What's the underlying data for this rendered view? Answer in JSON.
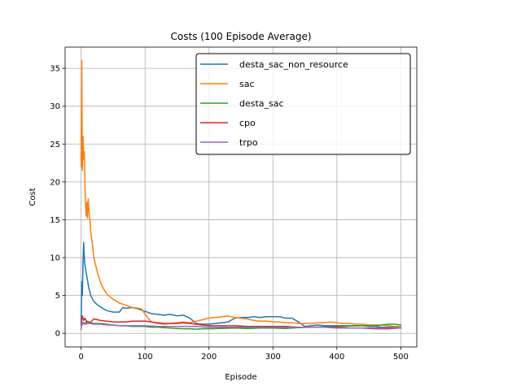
{
  "chart_data": {
    "type": "line",
    "title": "Costs (100 Episode Average)",
    "xlabel": "Episode",
    "ylabel": "Cost",
    "xlim": [
      -25,
      525
    ],
    "ylim": [
      -1.8,
      37.8
    ],
    "xticks": [
      0,
      100,
      200,
      300,
      400,
      500
    ],
    "yticks": [
      0,
      5,
      10,
      15,
      20,
      25,
      30,
      35
    ],
    "grid": true,
    "legend_position": "upper right",
    "series": [
      {
        "name": "desta_sac_non_resource",
        "color": "#1f77b4",
        "x": [
          0,
          1,
          2,
          3,
          4,
          5,
          6,
          7,
          8,
          10,
          12,
          15,
          20,
          25,
          30,
          40,
          50,
          60,
          65,
          70,
          80,
          90,
          100,
          110,
          120,
          130,
          140,
          150,
          160,
          170,
          180,
          190,
          200,
          210,
          220,
          230,
          240,
          250,
          260,
          270,
          280,
          290,
          300,
          310,
          320,
          330,
          340,
          350,
          360,
          370,
          380,
          390,
          400,
          410,
          420,
          430,
          440,
          450,
          460,
          470,
          480,
          490,
          500
        ],
        "y": [
          0.9,
          6.8,
          5.0,
          9.5,
          12.0,
          10.0,
          9.0,
          8.5,
          8.0,
          7.0,
          6.0,
          5.0,
          4.2,
          3.8,
          3.5,
          3.0,
          2.8,
          2.8,
          3.4,
          3.3,
          3.4,
          3.2,
          2.9,
          2.6,
          2.5,
          2.4,
          2.5,
          2.3,
          2.4,
          2.0,
          1.3,
          1.2,
          1.2,
          1.3,
          1.4,
          1.5,
          2.0,
          2.1,
          2.1,
          2.2,
          2.1,
          2.2,
          2.2,
          2.2,
          2.0,
          2.0,
          1.5,
          0.9,
          1.0,
          1.1,
          1.0,
          1.0,
          1.0,
          1.0,
          1.0,
          1.0,
          1.0,
          0.9,
          0.9,
          0.8,
          0.8,
          0.8,
          0.7
        ]
      },
      {
        "name": "sac",
        "color": "#ff7f0e",
        "x": [
          0,
          1,
          2,
          3,
          4,
          5,
          6,
          7,
          8,
          9,
          10,
          11,
          12,
          13,
          14,
          15,
          18,
          20,
          25,
          30,
          35,
          40,
          50,
          60,
          70,
          80,
          90,
          95,
          100,
          110,
          120,
          130,
          140,
          150,
          160,
          170,
          180,
          190,
          200,
          210,
          220,
          230,
          240,
          250,
          260,
          270,
          280,
          290,
          300,
          310,
          320,
          330,
          340,
          350,
          360,
          370,
          380,
          390,
          400,
          410,
          420,
          430,
          440,
          450,
          460,
          470,
          480,
          490,
          500
        ],
        "y": [
          22,
          36,
          21.5,
          26,
          23,
          24,
          20,
          17,
          15.5,
          17.3,
          15.2,
          17.8,
          16.5,
          15.5,
          15.0,
          13.5,
          11.5,
          10.0,
          8.2,
          6.8,
          5.9,
          5.2,
          4.5,
          4.0,
          3.7,
          3.4,
          3.3,
          3.2,
          2.5,
          1.5,
          1.3,
          1.2,
          1.3,
          1.4,
          1.5,
          1.4,
          1.6,
          1.8,
          2.0,
          2.1,
          2.2,
          2.3,
          2.1,
          2.0,
          1.9,
          1.7,
          1.6,
          1.6,
          1.5,
          1.5,
          1.4,
          1.4,
          1.3,
          1.3,
          1.3,
          1.4,
          1.4,
          1.5,
          1.4,
          1.3,
          1.3,
          1.2,
          1.2,
          1.1,
          1.1,
          1.1,
          1.0,
          0.9,
          0.9
        ]
      },
      {
        "name": "desta_sac",
        "color": "#2ca02c",
        "x": [
          0,
          2,
          5,
          10,
          15,
          20,
          30,
          40,
          50,
          60,
          70,
          80,
          90,
          100,
          110,
          120,
          130,
          140,
          150,
          160,
          170,
          180,
          190,
          200,
          220,
          240,
          260,
          280,
          300,
          320,
          340,
          360,
          380,
          400,
          420,
          440,
          460,
          470,
          480,
          490,
          500
        ],
        "y": [
          1.2,
          1.5,
          1.3,
          1.6,
          1.4,
          1.3,
          1.3,
          1.2,
          1.1,
          1.0,
          1.0,
          0.9,
          0.9,
          0.9,
          0.8,
          0.8,
          0.75,
          0.7,
          0.65,
          0.6,
          0.6,
          0.55,
          0.6,
          0.6,
          0.65,
          0.7,
          0.65,
          0.7,
          0.7,
          0.65,
          0.75,
          0.8,
          0.85,
          0.9,
          0.95,
          1.0,
          1.0,
          1.1,
          1.2,
          1.2,
          1.1
        ]
      },
      {
        "name": "cpo",
        "color": "#d62728",
        "x": [
          0,
          2,
          4,
          6,
          10,
          15,
          20,
          30,
          40,
          50,
          60,
          70,
          80,
          90,
          100,
          110,
          120,
          130,
          140,
          150,
          160,
          170,
          180,
          190,
          200,
          220,
          240,
          260,
          280,
          300,
          320,
          340,
          360,
          380,
          400,
          420,
          440,
          460,
          480,
          500
        ],
        "y": [
          1.4,
          2.3,
          1.7,
          2.0,
          1.3,
          1.5,
          1.9,
          1.7,
          1.6,
          1.5,
          1.5,
          1.5,
          1.6,
          1.6,
          1.6,
          1.5,
          1.4,
          1.3,
          1.3,
          1.3,
          1.4,
          1.3,
          1.2,
          1.1,
          1.0,
          1.0,
          1.0,
          0.9,
          0.9,
          0.9,
          0.9,
          0.8,
          0.8,
          0.8,
          0.8,
          0.7,
          0.7,
          0.6,
          0.6,
          0.7
        ]
      },
      {
        "name": "trpo",
        "color": "#9467bd",
        "x": [
          0,
          1,
          2,
          4,
          6,
          10,
          15,
          20,
          30,
          40,
          50,
          60,
          80,
          100,
          120,
          140,
          160,
          180,
          200,
          220,
          240,
          260,
          280,
          300,
          320,
          340,
          360,
          380,
          400,
          420,
          440,
          460,
          480,
          500
        ],
        "y": [
          0.5,
          1.6,
          1.1,
          1.4,
          1.2,
          1.3,
          1.3,
          1.2,
          1.2,
          1.1,
          1.1,
          1.0,
          1.0,
          1.0,
          0.9,
          0.9,
          0.9,
          0.9,
          0.8,
          0.8,
          0.8,
          0.8,
          0.8,
          0.8,
          0.8,
          0.8,
          0.8,
          0.8,
          0.7,
          0.7,
          0.7,
          0.7,
          0.7,
          0.7
        ]
      }
    ]
  }
}
